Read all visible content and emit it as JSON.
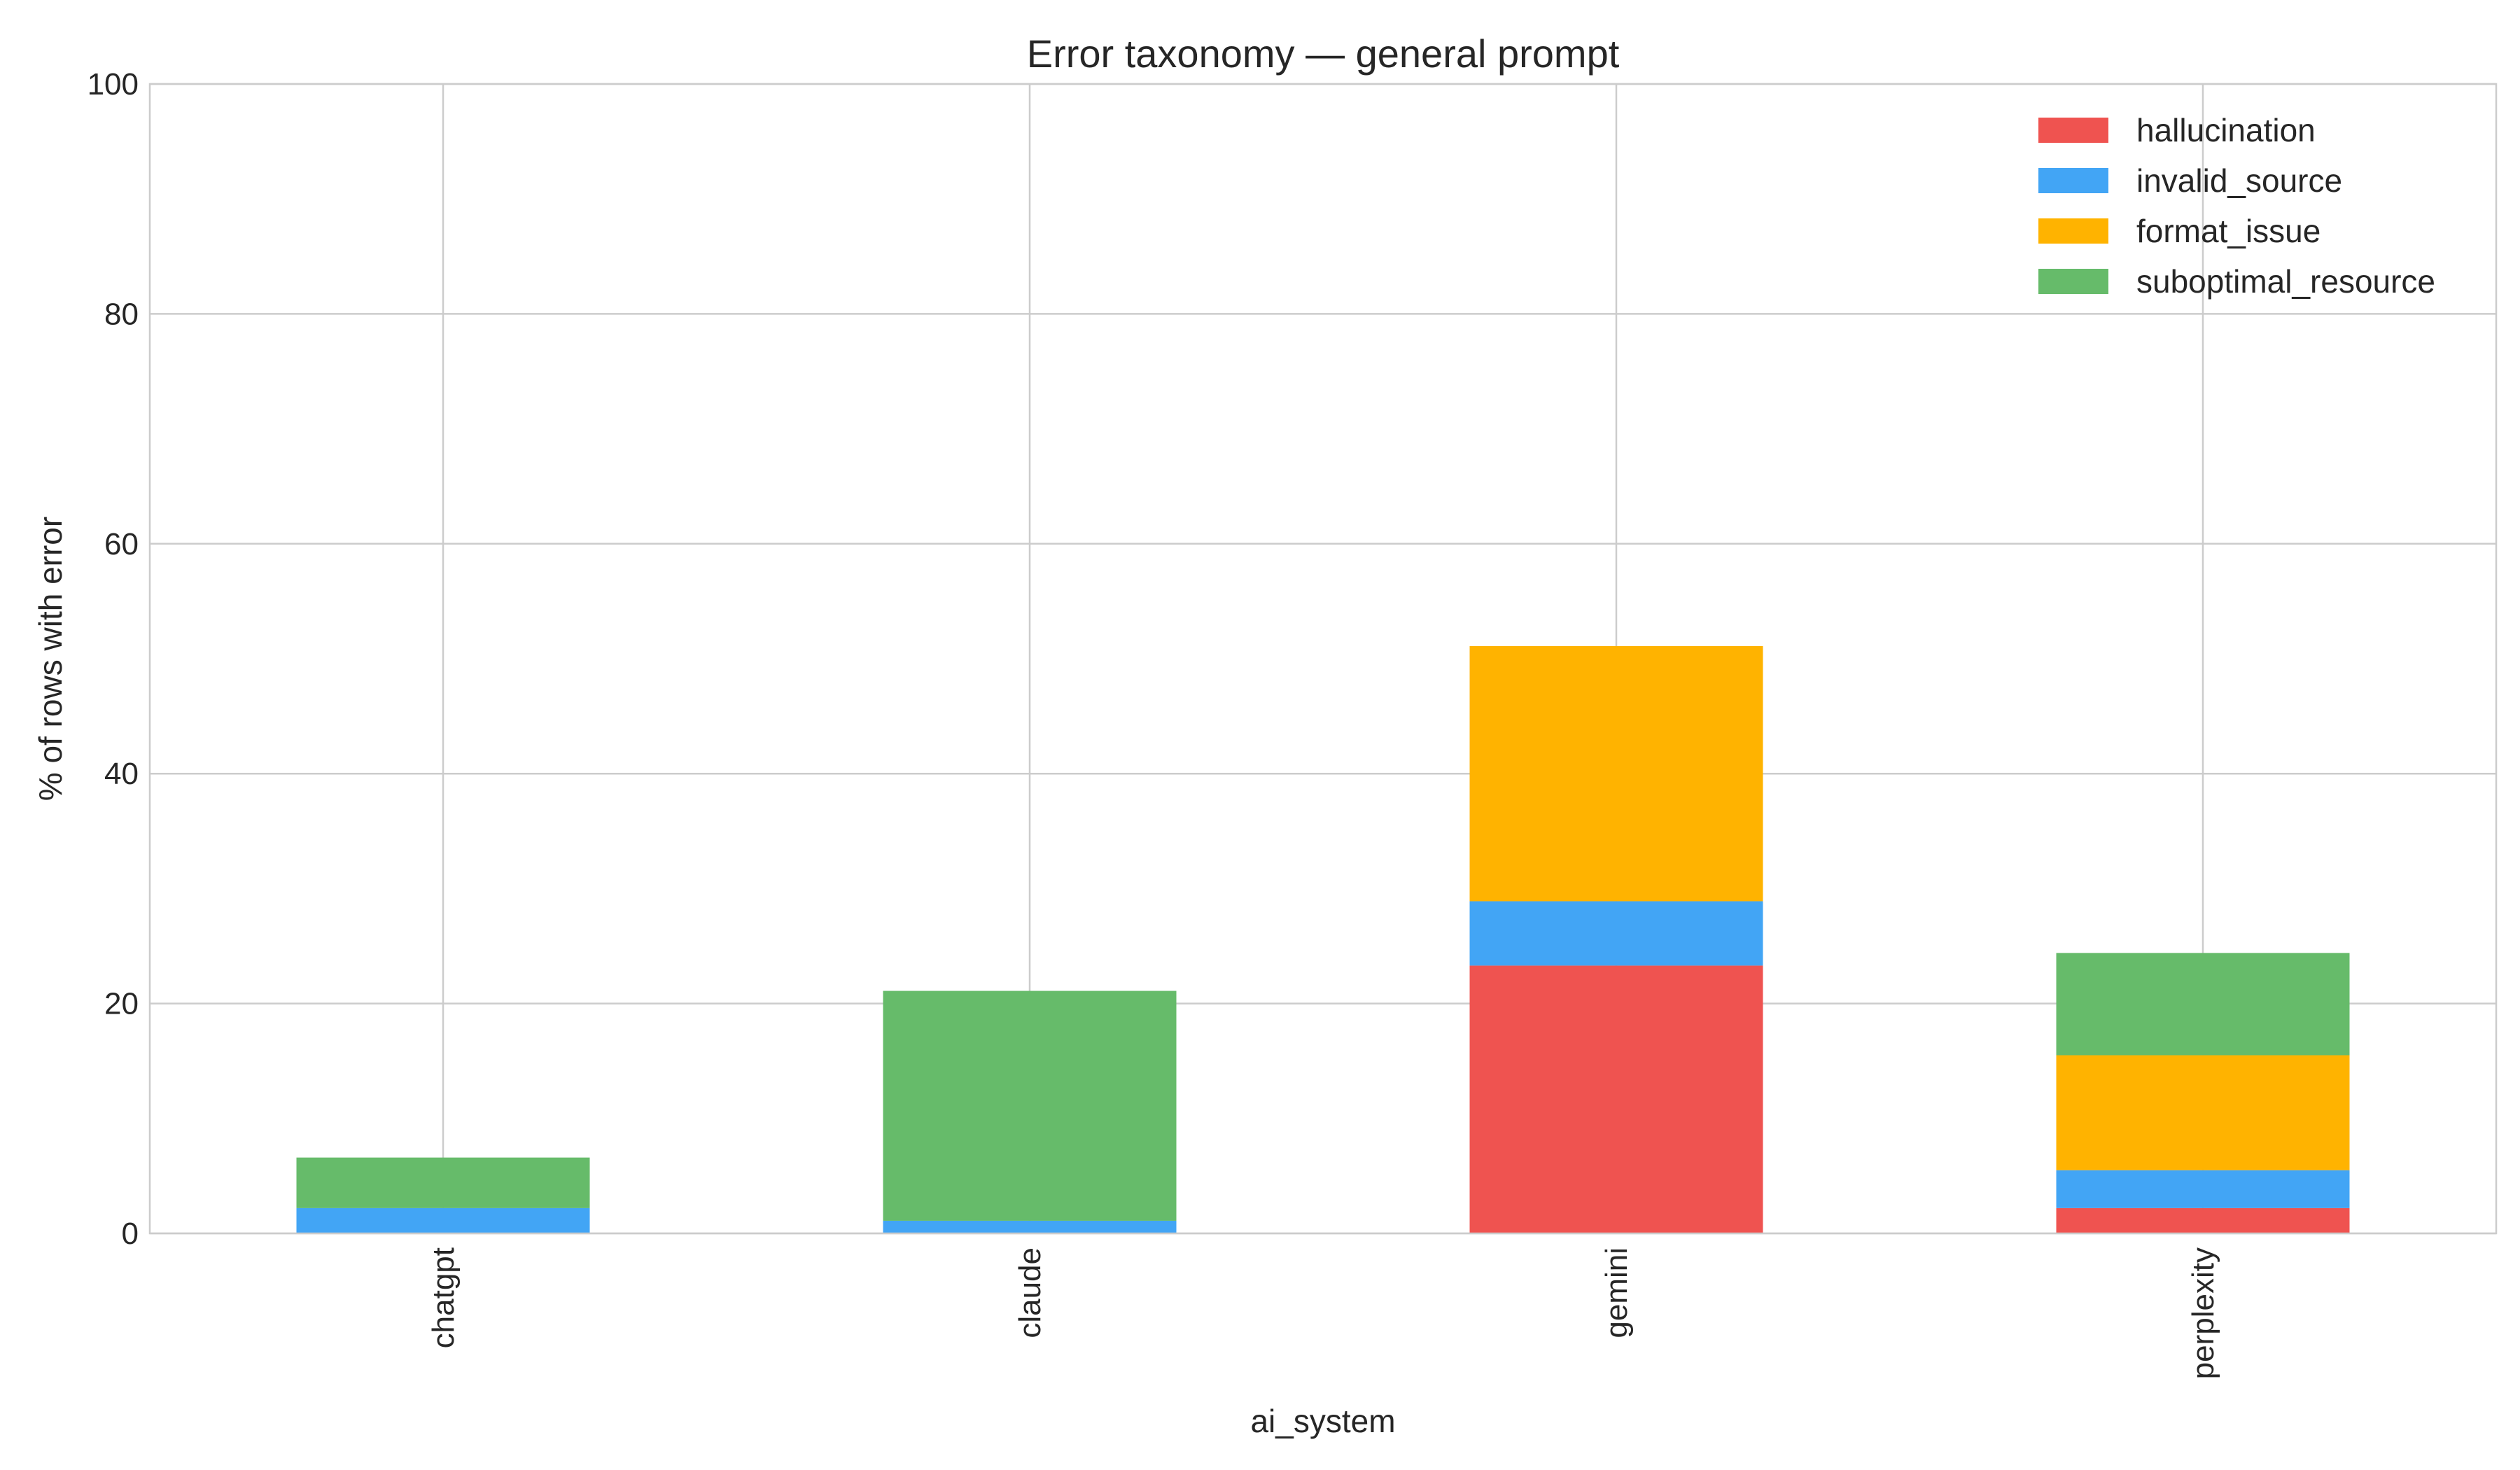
{
  "chart_data": {
    "type": "bar",
    "stacked": true,
    "title": "Error taxonomy — general prompt",
    "xlabel": "ai_system",
    "ylabel": "% of rows with error",
    "ylim": [
      0,
      100
    ],
    "yticks": [
      0,
      20,
      40,
      60,
      80,
      100
    ],
    "grid": true,
    "legend_position": "top-right",
    "categories": [
      "chatgpt",
      "claude",
      "gemini",
      "perplexity"
    ],
    "series": [
      {
        "name": "hallucination",
        "color": "#ef5350",
        "values": [
          0,
          0,
          23.3,
          2.2
        ]
      },
      {
        "name": "invalid_source",
        "color": "#42a5f5",
        "values": [
          2.2,
          1.1,
          5.6,
          3.3
        ]
      },
      {
        "name": "format_issue",
        "color": "#ffb300",
        "values": [
          0,
          0,
          22.2,
          10.0
        ]
      },
      {
        "name": "suboptimal_resource",
        "color": "#66bb6a",
        "values": [
          4.4,
          20.0,
          0,
          8.9
        ]
      }
    ]
  }
}
